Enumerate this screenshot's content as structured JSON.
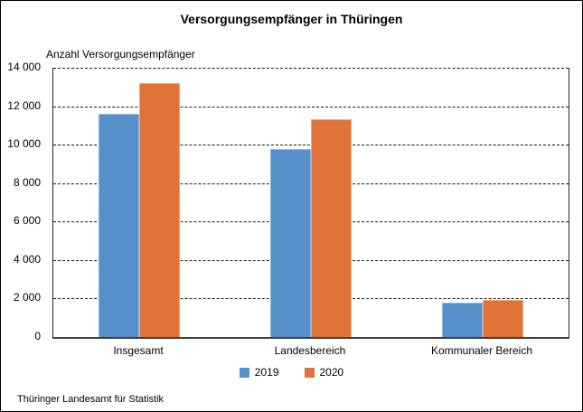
{
  "window": {
    "background": "#ffffff",
    "border_color": "#000000"
  },
  "header": {
    "title": "Versorgungsempfänger in Thüringen"
  },
  "footer": {
    "source": "Thüringer Landesamt für Statistik"
  },
  "chart_data": {
    "type": "bar",
    "title": "Versorgungsempfänger in Thüringen",
    "axis_title": "Anzahl Versorgungsempfänger",
    "categories": [
      "Insgesamt",
      "Landesbereich",
      "Kommunaler Bereich"
    ],
    "series": [
      {
        "name": "2019",
        "color": "#5590CB",
        "values": [
          11600,
          9750,
          1800
        ]
      },
      {
        "name": "2020",
        "color": "#E07438",
        "values": [
          13200,
          11300,
          1950
        ]
      }
    ],
    "ylabel": "Anzahl Versorgungsempfänger",
    "xlabel": "",
    "ylim": [
      0,
      14000
    ],
    "ytick_step": 2000,
    "yticks": [
      0,
      2000,
      4000,
      6000,
      8000,
      10000,
      12000,
      14000
    ],
    "ytick_labels": [
      "0",
      "2 000",
      "4 000",
      "6 000",
      "8 000",
      "10 000",
      "12 000",
      "14 000"
    ],
    "grid": "horizontal-dashed",
    "gridline_color": "#141414",
    "axis_line_color": "#3f3f3f",
    "legend_position": "bottom"
  }
}
